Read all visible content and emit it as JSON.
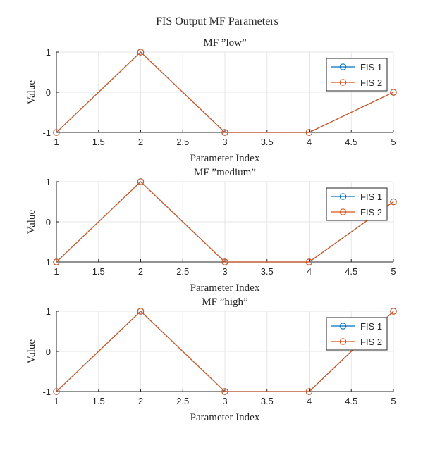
{
  "figure": {
    "title": "FIS Output MF Parameters"
  },
  "chart_data": [
    {
      "type": "line",
      "title": "MF ”low”",
      "xlabel": "Parameter Index",
      "ylabel": "Value",
      "xlim": [
        1,
        5
      ],
      "ylim": [
        -1,
        1
      ],
      "xticks": [
        1,
        1.5,
        2,
        2.5,
        3,
        3.5,
        4,
        4.5,
        5
      ],
      "yticks": [
        -1,
        0,
        1
      ],
      "grid": true,
      "legend_position": "top-right",
      "x": [
        1,
        2,
        3,
        4,
        5
      ],
      "series": [
        {
          "name": "FIS 1",
          "values": [
            -1,
            1,
            -1,
            -1,
            0
          ],
          "color": "#0072BD"
        },
        {
          "name": "FIS 2",
          "values": [
            -1,
            1,
            -1,
            -1,
            0
          ],
          "color": "#D95319"
        }
      ]
    },
    {
      "type": "line",
      "title": "MF ”medium”",
      "xlabel": "Parameter Index",
      "ylabel": "Value",
      "xlim": [
        1,
        5
      ],
      "ylim": [
        -1,
        1
      ],
      "xticks": [
        1,
        1.5,
        2,
        2.5,
        3,
        3.5,
        4,
        4.5,
        5
      ],
      "yticks": [
        -1,
        0,
        1
      ],
      "grid": true,
      "legend_position": "top-right",
      "x": [
        1,
        2,
        3,
        4,
        5
      ],
      "series": [
        {
          "name": "FIS 1",
          "values": [
            -1,
            1,
            -1,
            -1,
            0.5
          ],
          "color": "#0072BD"
        },
        {
          "name": "FIS 2",
          "values": [
            -1,
            1,
            -1,
            -1,
            0.5
          ],
          "color": "#D95319"
        }
      ]
    },
    {
      "type": "line",
      "title": "MF ”high”",
      "xlabel": "Parameter Index",
      "ylabel": "Value",
      "xlim": [
        1,
        5
      ],
      "ylim": [
        -1,
        1
      ],
      "xticks": [
        1,
        1.5,
        2,
        2.5,
        3,
        3.5,
        4,
        4.5,
        5
      ],
      "yticks": [
        -1,
        0,
        1
      ],
      "grid": true,
      "legend_position": "top-right",
      "x": [
        1,
        2,
        3,
        4,
        5
      ],
      "series": [
        {
          "name": "FIS 1",
          "values": [
            -1,
            1,
            -1,
            -1,
            1
          ],
          "color": "#0072BD"
        },
        {
          "name": "FIS 2",
          "values": [
            -1,
            1,
            -1,
            -1,
            1
          ],
          "color": "#D95319"
        }
      ]
    }
  ]
}
